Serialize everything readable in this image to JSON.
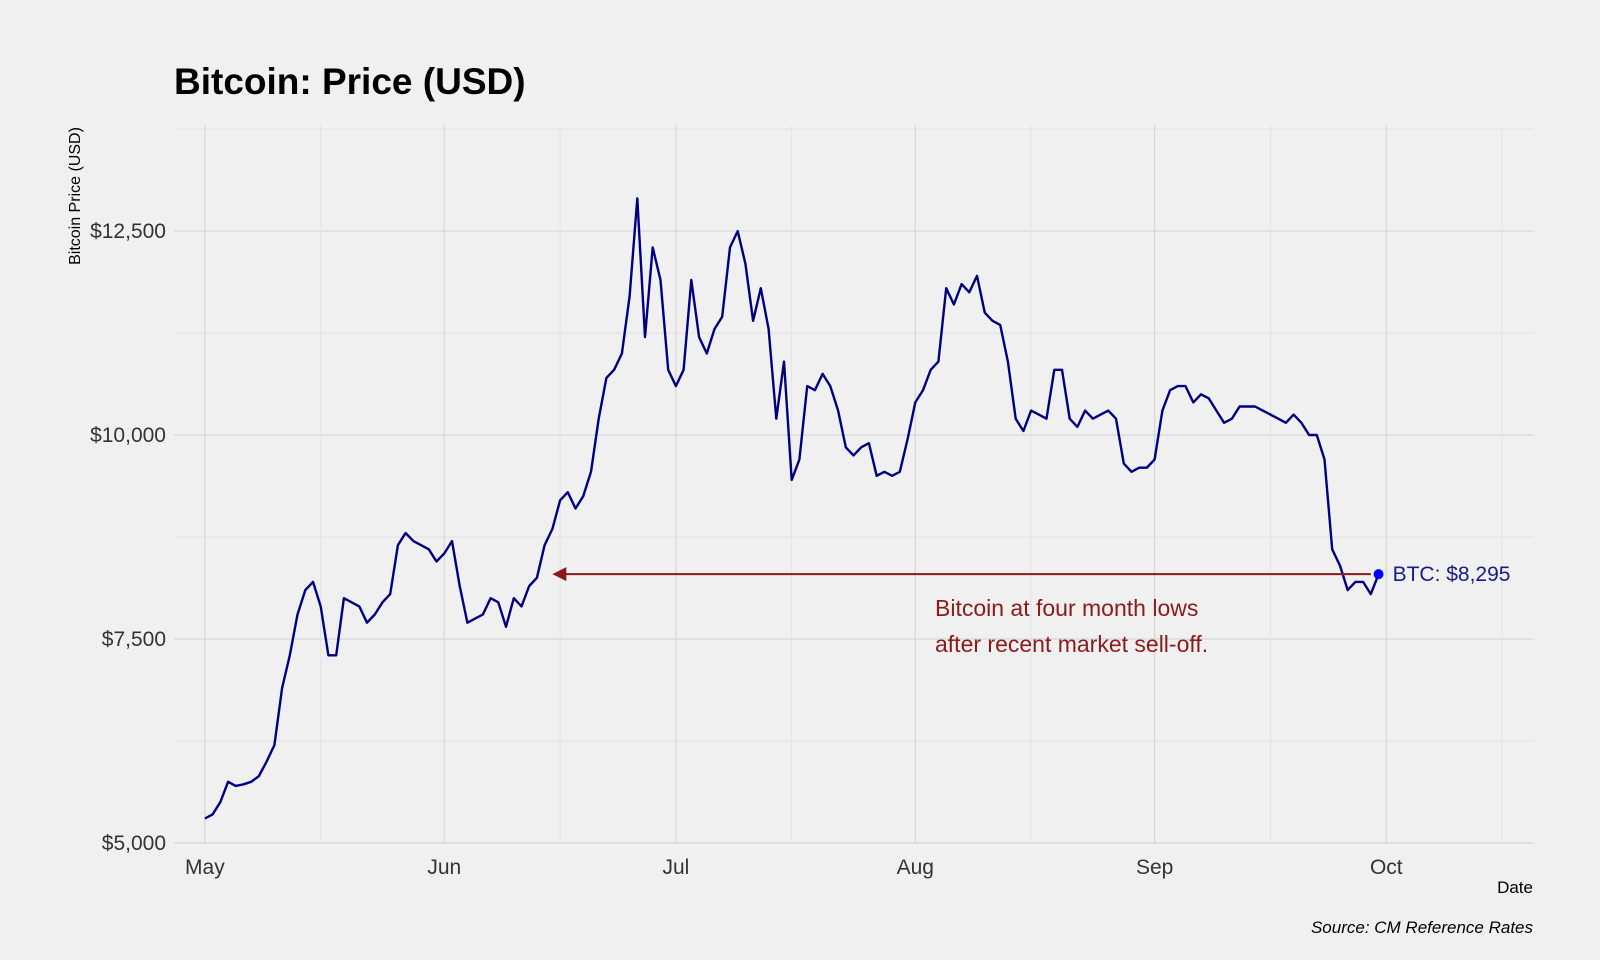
{
  "chart_data": {
    "type": "line",
    "title": "Bitcoin: Price (USD)",
    "xlabel": "Date",
    "ylabel": "Bitcoin Price (USD)",
    "source": "Source: CM Reference Rates",
    "x_range": [
      "2019-04-27",
      "2019-10-20"
    ],
    "ylim": [
      5000,
      13800
    ],
    "y_ticks": [
      {
        "value": 5000,
        "label": "$5,000"
      },
      {
        "value": 7500,
        "label": "$7,500"
      },
      {
        "value": 10000,
        "label": "$10,000"
      },
      {
        "value": 12500,
        "label": "$12,500"
      }
    ],
    "x_ticks": [
      {
        "date": "2019-05-01",
        "label": "May"
      },
      {
        "date": "2019-06-01",
        "label": "Jun"
      },
      {
        "date": "2019-07-01",
        "label": "Jul"
      },
      {
        "date": "2019-08-01",
        "label": "Aug"
      },
      {
        "date": "2019-09-01",
        "label": "Sep"
      },
      {
        "date": "2019-10-01",
        "label": "Oct"
      }
    ],
    "series": [
      {
        "color": "#000080",
        "points": [
          [
            "2019-05-01",
            5300
          ],
          [
            "2019-05-02",
            5350
          ],
          [
            "2019-05-03",
            5500
          ],
          [
            "2019-05-04",
            5750
          ],
          [
            "2019-05-05",
            5700
          ],
          [
            "2019-05-06",
            5720
          ],
          [
            "2019-05-07",
            5750
          ],
          [
            "2019-05-08",
            5820
          ],
          [
            "2019-05-09",
            6000
          ],
          [
            "2019-05-10",
            6200
          ],
          [
            "2019-05-11",
            6900
          ],
          [
            "2019-05-12",
            7300
          ],
          [
            "2019-05-13",
            7800
          ],
          [
            "2019-05-14",
            8100
          ],
          [
            "2019-05-15",
            8200
          ],
          [
            "2019-05-16",
            7900
          ],
          [
            "2019-05-17",
            7300
          ],
          [
            "2019-05-18",
            7300
          ],
          [
            "2019-05-19",
            8000
          ],
          [
            "2019-05-20",
            7950
          ],
          [
            "2019-05-21",
            7900
          ],
          [
            "2019-05-22",
            7700
          ],
          [
            "2019-05-23",
            7800
          ],
          [
            "2019-05-24",
            7950
          ],
          [
            "2019-05-25",
            8050
          ],
          [
            "2019-05-26",
            8650
          ],
          [
            "2019-05-27",
            8800
          ],
          [
            "2019-05-28",
            8700
          ],
          [
            "2019-05-29",
            8650
          ],
          [
            "2019-05-30",
            8600
          ],
          [
            "2019-05-31",
            8450
          ],
          [
            "2019-06-01",
            8550
          ],
          [
            "2019-06-02",
            8700
          ],
          [
            "2019-06-03",
            8150
          ],
          [
            "2019-06-04",
            7700
          ],
          [
            "2019-06-05",
            7750
          ],
          [
            "2019-06-06",
            7800
          ],
          [
            "2019-06-07",
            8000
          ],
          [
            "2019-06-08",
            7950
          ],
          [
            "2019-06-09",
            7650
          ],
          [
            "2019-06-10",
            8000
          ],
          [
            "2019-06-11",
            7900
          ],
          [
            "2019-06-12",
            8150
          ],
          [
            "2019-06-13",
            8250
          ],
          [
            "2019-06-14",
            8650
          ],
          [
            "2019-06-15",
            8850
          ],
          [
            "2019-06-16",
            9200
          ],
          [
            "2019-06-17",
            9300
          ],
          [
            "2019-06-18",
            9100
          ],
          [
            "2019-06-19",
            9250
          ],
          [
            "2019-06-20",
            9550
          ],
          [
            "2019-06-21",
            10200
          ],
          [
            "2019-06-22",
            10700
          ],
          [
            "2019-06-23",
            10800
          ],
          [
            "2019-06-24",
            11000
          ],
          [
            "2019-06-25",
            11700
          ],
          [
            "2019-06-26",
            12900
          ],
          [
            "2019-06-27",
            11200
          ],
          [
            "2019-06-28",
            12300
          ],
          [
            "2019-06-29",
            11900
          ],
          [
            "2019-06-30",
            10800
          ],
          [
            "2019-07-01",
            10600
          ],
          [
            "2019-07-02",
            10800
          ],
          [
            "2019-07-03",
            11900
          ],
          [
            "2019-07-04",
            11200
          ],
          [
            "2019-07-05",
            11000
          ],
          [
            "2019-07-06",
            11300
          ],
          [
            "2019-07-07",
            11450
          ],
          [
            "2019-07-08",
            12300
          ],
          [
            "2019-07-09",
            12500
          ],
          [
            "2019-07-10",
            12100
          ],
          [
            "2019-07-11",
            11400
          ],
          [
            "2019-07-12",
            11800
          ],
          [
            "2019-07-13",
            11300
          ],
          [
            "2019-07-14",
            10200
          ],
          [
            "2019-07-15",
            10900
          ],
          [
            "2019-07-16",
            9450
          ],
          [
            "2019-07-17",
            9700
          ],
          [
            "2019-07-18",
            10600
          ],
          [
            "2019-07-19",
            10550
          ],
          [
            "2019-07-20",
            10750
          ],
          [
            "2019-07-21",
            10600
          ],
          [
            "2019-07-22",
            10300
          ],
          [
            "2019-07-23",
            9850
          ],
          [
            "2019-07-24",
            9750
          ],
          [
            "2019-07-25",
            9850
          ],
          [
            "2019-07-26",
            9900
          ],
          [
            "2019-07-27",
            9500
          ],
          [
            "2019-07-28",
            9550
          ],
          [
            "2019-07-29",
            9500
          ],
          [
            "2019-07-30",
            9550
          ],
          [
            "2019-07-31",
            9950
          ],
          [
            "2019-08-01",
            10400
          ],
          [
            "2019-08-02",
            10550
          ],
          [
            "2019-08-03",
            10800
          ],
          [
            "2019-08-04",
            10900
          ],
          [
            "2019-08-05",
            11800
          ],
          [
            "2019-08-06",
            11600
          ],
          [
            "2019-08-07",
            11850
          ],
          [
            "2019-08-08",
            11750
          ],
          [
            "2019-08-09",
            11950
          ],
          [
            "2019-08-10",
            11500
          ],
          [
            "2019-08-11",
            11400
          ],
          [
            "2019-08-12",
            11350
          ],
          [
            "2019-08-13",
            10900
          ],
          [
            "2019-08-14",
            10200
          ],
          [
            "2019-08-15",
            10050
          ],
          [
            "2019-08-16",
            10300
          ],
          [
            "2019-08-17",
            10250
          ],
          [
            "2019-08-18",
            10200
          ],
          [
            "2019-08-19",
            10800
          ],
          [
            "2019-08-20",
            10800
          ],
          [
            "2019-08-21",
            10200
          ],
          [
            "2019-08-22",
            10100
          ],
          [
            "2019-08-23",
            10300
          ],
          [
            "2019-08-24",
            10200
          ],
          [
            "2019-08-25",
            10250
          ],
          [
            "2019-08-26",
            10300
          ],
          [
            "2019-08-27",
            10200
          ],
          [
            "2019-08-28",
            9650
          ],
          [
            "2019-08-29",
            9550
          ],
          [
            "2019-08-30",
            9600
          ],
          [
            "2019-08-31",
            9600
          ],
          [
            "2019-09-01",
            9700
          ],
          [
            "2019-09-02",
            10300
          ],
          [
            "2019-09-03",
            10550
          ],
          [
            "2019-09-04",
            10600
          ],
          [
            "2019-09-05",
            10600
          ],
          [
            "2019-09-06",
            10400
          ],
          [
            "2019-09-07",
            10500
          ],
          [
            "2019-09-08",
            10450
          ],
          [
            "2019-09-09",
            10300
          ],
          [
            "2019-09-10",
            10150
          ],
          [
            "2019-09-11",
            10200
          ],
          [
            "2019-09-12",
            10350
          ],
          [
            "2019-09-13",
            10350
          ],
          [
            "2019-09-14",
            10350
          ],
          [
            "2019-09-15",
            10300
          ],
          [
            "2019-09-16",
            10250
          ],
          [
            "2019-09-17",
            10200
          ],
          [
            "2019-09-18",
            10150
          ],
          [
            "2019-09-19",
            10250
          ],
          [
            "2019-09-20",
            10150
          ],
          [
            "2019-09-21",
            10000
          ],
          [
            "2019-09-22",
            10000
          ],
          [
            "2019-09-23",
            9700
          ],
          [
            "2019-09-24",
            8600
          ],
          [
            "2019-09-25",
            8400
          ],
          [
            "2019-09-26",
            8100
          ],
          [
            "2019-09-27",
            8200
          ],
          [
            "2019-09-28",
            8200
          ],
          [
            "2019-09-29",
            8050
          ],
          [
            "2019-09-30",
            8295
          ]
        ]
      }
    ],
    "end_label": {
      "date": "2019-09-30",
      "value": 8295,
      "text": "BTC: $8,295",
      "color": "#0000ff"
    },
    "annotation": {
      "lines": [
        "Bitcoin at four month lows",
        "after recent market sell-off."
      ],
      "arrow_from": {
        "date": "2019-09-29",
        "value": 8295
      },
      "arrow_to": {
        "date": "2019-06-15",
        "value": 8295
      },
      "color": "#8b1a1a"
    }
  }
}
